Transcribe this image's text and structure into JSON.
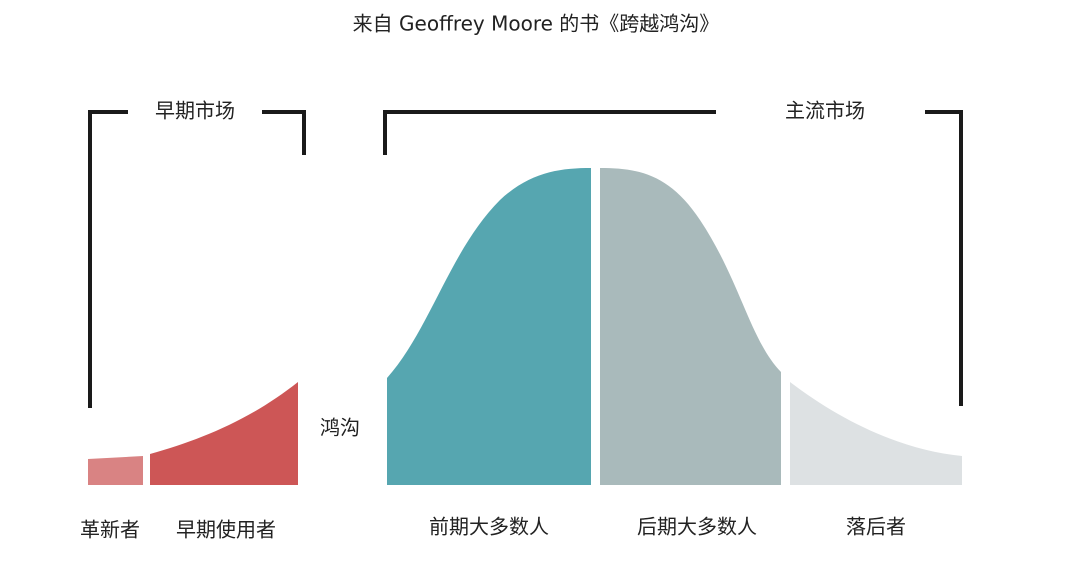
{
  "title": "来自 Geoffrey Moore 的书《跨越鸿沟》",
  "markets": {
    "early": "早期市场",
    "mainstream": "主流市场"
  },
  "chasm": "鸿沟",
  "segments": [
    "革新者",
    "早期使用者",
    "前期大多数人",
    "后期大多数人",
    "落后者"
  ]
}
